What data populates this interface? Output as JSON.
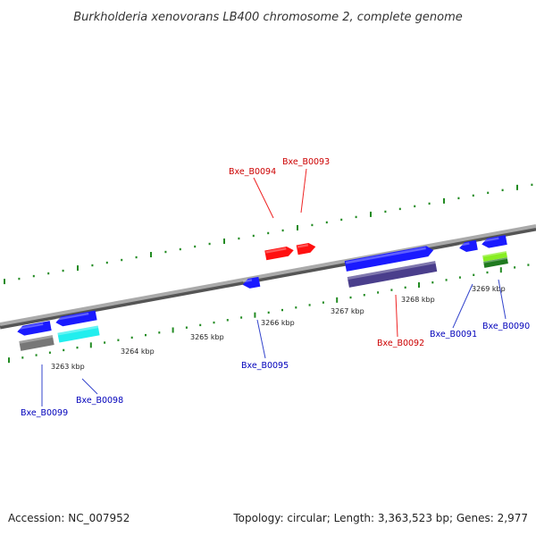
{
  "title": "Burkholderia xenovorans LB400 chromosome 2, complete genome",
  "footer": {
    "accession": "Accession: NC_007952",
    "summary": "Topology: circular; Length: 3,363,523 bp; Genes: 2,977"
  },
  "colors": {
    "backbone": "#8c8c8c",
    "tick": "#228b22",
    "label_forward": "#cc0000",
    "label_reverse": "#0000bb",
    "leader_forward": "#ee2222",
    "leader_reverse": "#3344cc"
  },
  "scale": {
    "labels": [
      "3263 kbp",
      "3264 kbp",
      "3265 kbp",
      "3266 kbp",
      "3267 kbp",
      "3268 kbp",
      "3269 kbp"
    ]
  },
  "genes": [
    {
      "id": "Bxe_B0099",
      "strand": "reverse",
      "colors": [
        "#1a1aff",
        "#777777"
      ]
    },
    {
      "id": "Bxe_B0098",
      "strand": "reverse",
      "colors": [
        "#1a1aff",
        "#22eeee"
      ]
    },
    {
      "id": "Bxe_B0095",
      "strand": "reverse",
      "colors": [
        "#1a1aff"
      ]
    },
    {
      "id": "Bxe_B0094",
      "strand": "forward",
      "colors": [
        "#ff1010"
      ]
    },
    {
      "id": "Bxe_B0093",
      "strand": "forward",
      "colors": [
        "#ff1010"
      ]
    },
    {
      "id": "Bxe_B0092",
      "strand": "forward",
      "colors": [
        "#1a1aff",
        "#4a3e8c"
      ]
    },
    {
      "id": "Bxe_B0091",
      "strand": "reverse",
      "colors": [
        "#1a1aff"
      ]
    },
    {
      "id": "Bxe_B0090",
      "strand": "reverse",
      "colors": [
        "#1a1aff",
        "#88ee22",
        "#1f7a1f"
      ]
    }
  ]
}
